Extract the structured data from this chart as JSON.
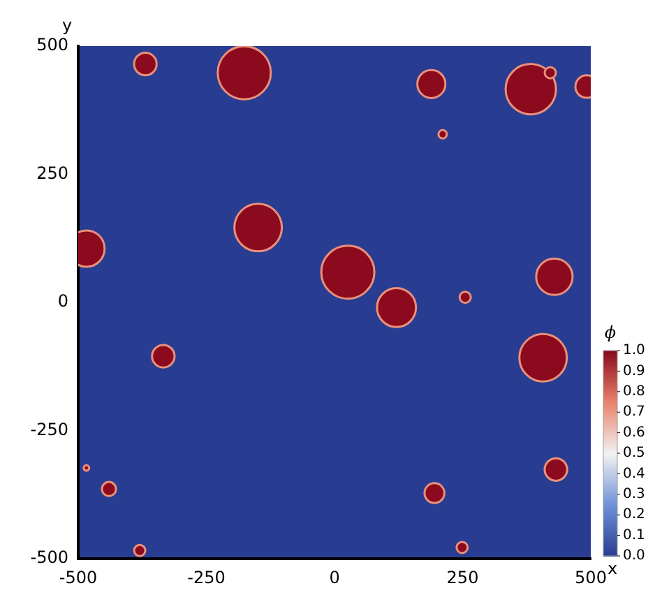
{
  "chart_data": {
    "type": "bubble",
    "xlabel": "x",
    "ylabel": "y",
    "clabel": "ϕ",
    "x": [
      -369,
      -176,
      189,
      383,
      421,
      492,
      211,
      -484,
      -149,
      26,
      121,
      255,
      429,
      -334,
      407,
      432,
      195,
      -440,
      -484,
      -380,
      249
    ],
    "values": [
      465,
      448,
      426,
      416,
      448,
      421,
      328,
      105,
      146,
      59,
      -10,
      10,
      50,
      -105,
      -108,
      -326,
      -372,
      -364,
      -323,
      -484,
      -478
    ],
    "sizes": [
      0.18,
      1,
      0.28,
      0.9,
      0.044,
      0.18,
      0.025,
      0.47,
      0.8,
      1,
      0.54,
      0.044,
      0.47,
      0.18,
      0.8,
      0.18,
      0.14,
      0.07,
      0.011,
      0.044,
      0.044
    ],
    "cvalues": [
      1,
      1,
      1,
      1,
      1,
      1,
      1,
      1,
      1,
      1,
      1,
      1,
      1,
      1,
      1,
      1,
      1,
      1,
      1,
      1,
      1
    ],
    "xlim": [
      -500,
      500
    ],
    "ylim": [
      -500,
      500
    ],
    "xticks": [
      -500,
      -250,
      0,
      250,
      500
    ],
    "yticks": [
      -500,
      -250,
      0,
      250,
      500
    ],
    "clim": [
      0,
      1
    ],
    "cticks": [
      {
        "value": 0,
        "label": "0.0"
      },
      {
        "value": 0.1,
        "label": "0.1"
      },
      {
        "value": 0.2,
        "label": "0.2"
      },
      {
        "value": 0.3,
        "label": "0.3"
      },
      {
        "value": 0.4,
        "label": "0.4"
      },
      {
        "value": 0.5,
        "label": "0.5"
      },
      {
        "value": 0.6,
        "label": "0.6"
      },
      {
        "value": 0.7,
        "label": "0.7"
      },
      {
        "value": 0.8,
        "label": "0.8"
      },
      {
        "value": 0.9,
        "label": "0.9"
      },
      {
        "value": 1,
        "label": "1.0"
      }
    ]
  }
}
